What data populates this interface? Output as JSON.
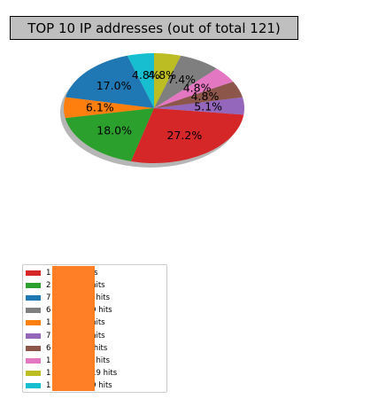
{
  "chart_data": {
    "type": "pie",
    "title": "TOP 10 IP addresses (out of total 121)",
    "start_angle_deg": 90,
    "direction": "counterclockwise",
    "shadow": true,
    "legend_position": "bottom-left",
    "slices": [
      {
        "value": 4.8,
        "pct_label": "4.8%",
        "color": "#17becf",
        "legend": "1                 2.97 --> 19 hits"
      },
      {
        "value": 17.0,
        "pct_label": "17.0%",
        "color": "#1f77b4",
        "legend": "7                 177 --> 67 hits"
      },
      {
        "value": 6.1,
        "pct_label": "6.1%",
        "color": "#ff7f0e",
        "legend": "1                 40 --> 24 hits"
      },
      {
        "value": 18.0,
        "pct_label": "18.0%",
        "color": "#2ca02c",
        "legend": "2                 40 --> 71 hits"
      },
      {
        "value": 27.2,
        "pct_label": "27.2%",
        "color": "#d62728",
        "legend": "1                 --> 107 hits"
      },
      {
        "value": 5.1,
        "pct_label": "5.1%",
        "color": "#9467bd",
        "legend": "7                 48 --> 20 hits"
      },
      {
        "value": 4.8,
        "pct_label": "4.8%",
        "color": "#8c564b",
        "legend": "6                 .56 --> 19 hits"
      },
      {
        "value": 4.8,
        "pct_label": "4.8%",
        "color": "#e377c2",
        "legend": "1                 201 --> 19 hits"
      },
      {
        "value": 7.4,
        "pct_label": "7.4%",
        "color": "#7f7f7f",
        "legend": "6                 .108 --> 29 hits"
      },
      {
        "value": 4.8,
        "pct_label": "4.8%",
        "color": "#bcbd22",
        "legend": "1                 2.156 --> 19 hits"
      }
    ],
    "legend_order": [
      4,
      3,
      1,
      8,
      2,
      5,
      6,
      7,
      9,
      0
    ],
    "redaction_color": "#ff7f27"
  }
}
